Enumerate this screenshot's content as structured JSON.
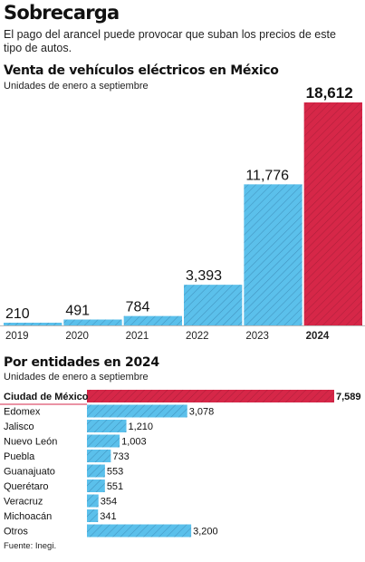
{
  "header": {
    "title": "Sobrecarga",
    "subtitle": "El pago del arancel puede provocar que suban los precios de este tipo de autos."
  },
  "colors": {
    "blue": "#5bc0eb",
    "red": "#d62748",
    "hatch": "#2c6f9a",
    "hatch_red": "#8e1530"
  },
  "chart_data": [
    {
      "type": "bar",
      "title": "Venta de vehículos eléctricos en México",
      "subtitle": "Unidades de enero a septiembre",
      "categories": [
        "2019",
        "2020",
        "2021",
        "2022",
        "2023",
        "2024"
      ],
      "values": [
        210,
        491,
        784,
        3393,
        11776,
        18612
      ],
      "value_labels": [
        "210",
        "491",
        "784",
        "3,393",
        "11,776",
        "18,612"
      ],
      "highlight_index": 5,
      "ylim": [
        0,
        18612
      ],
      "grid": false
    },
    {
      "type": "bar",
      "orientation": "horizontal",
      "title": "Por entidades en 2024",
      "subtitle": "Unidades de enero a septiembre",
      "categories": [
        "Ciudad de México",
        "Edomex",
        "Jalisco",
        "Nuevo León",
        "Puebla",
        "Guanajuato",
        "Querétaro",
        "Veracruz",
        "Michoacán",
        "Otros"
      ],
      "values": [
        7589,
        3078,
        1210,
        1003,
        733,
        553,
        551,
        354,
        341,
        3200
      ],
      "value_labels": [
        "7,589",
        "3,078",
        "1,210",
        "1,003",
        "733",
        "553",
        "551",
        "354",
        "341",
        "3,200"
      ],
      "highlight_index": 0,
      "xlim": [
        0,
        7589
      ],
      "grid": false
    }
  ],
  "footer": {
    "source": "Fuente: Inegi."
  }
}
